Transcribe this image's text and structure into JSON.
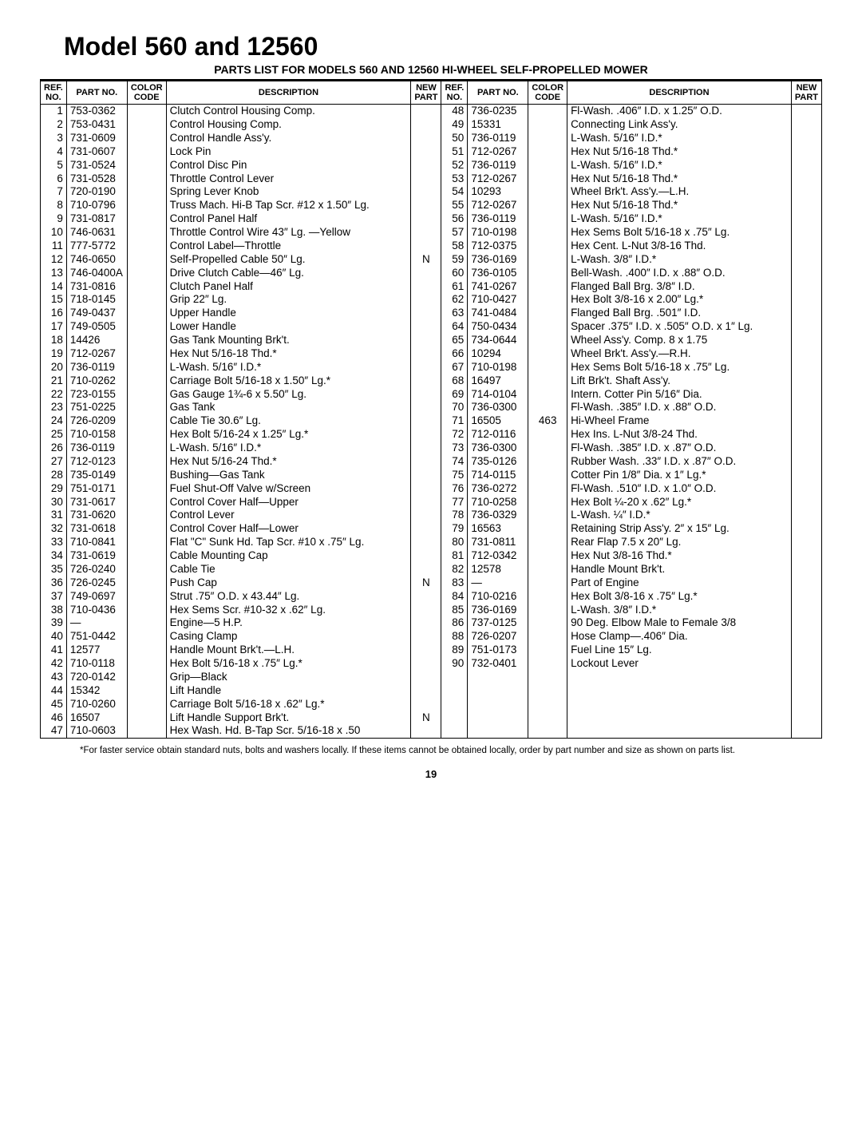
{
  "title": "Model 560 and 12560",
  "subtitle": "PARTS LIST FOR MODELS 560 AND 12560 HI-WHEEL SELF-PROPELLED MOWER",
  "headers": {
    "ref": "REF.\nNO.",
    "part": "PART\nNO.",
    "color": "COLOR\nCODE",
    "desc": "DESCRIPTION",
    "newp": "NEW\nPART"
  },
  "left": [
    {
      "ref": "1",
      "part": "753-0362",
      "color": "",
      "desc": "Clutch Control Housing Comp.",
      "newp": ""
    },
    {
      "ref": "2",
      "part": "753-0431",
      "color": "",
      "desc": "Control Housing Comp.",
      "newp": ""
    },
    {
      "ref": "3",
      "part": "731-0609",
      "color": "",
      "desc": "Control Handle Ass'y.",
      "newp": ""
    },
    {
      "ref": "4",
      "part": "731-0607",
      "color": "",
      "desc": "Lock Pin",
      "newp": ""
    },
    {
      "ref": "5",
      "part": "731-0524",
      "color": "",
      "desc": "Control Disc Pin",
      "newp": ""
    },
    {
      "ref": "6",
      "part": "731-0528",
      "color": "",
      "desc": "Throttle Control Lever",
      "newp": ""
    },
    {
      "ref": "7",
      "part": "720-0190",
      "color": "",
      "desc": "Spring Lever Knob",
      "newp": ""
    },
    {
      "ref": "8",
      "part": "710-0796",
      "color": "",
      "desc": "Truss Mach. Hi-B Tap Scr. #12 x 1.50″ Lg.",
      "newp": ""
    },
    {
      "ref": "9",
      "part": "731-0817",
      "color": "",
      "desc": "Control Panel Half",
      "newp": ""
    },
    {
      "ref": "10",
      "part": "746-0631",
      "color": "",
      "desc": "Throttle Control Wire 43″ Lg. —Yellow",
      "newp": ""
    },
    {
      "ref": "11",
      "part": "777-5772",
      "color": "",
      "desc": "Control Label—Throttle",
      "newp": ""
    },
    {
      "ref": "12",
      "part": "746-0650",
      "color": "",
      "desc": "Self-Propelled Cable 50″ Lg.",
      "newp": "N"
    },
    {
      "ref": "13",
      "part": "746-0400A",
      "color": "",
      "desc": "Drive Clutch Cable—46″ Lg.",
      "newp": ""
    },
    {
      "ref": "14",
      "part": "731-0816",
      "color": "",
      "desc": "Clutch Panel Half",
      "newp": ""
    },
    {
      "ref": "15",
      "part": "718-0145",
      "color": "",
      "desc": "Grip 22″ Lg.",
      "newp": ""
    },
    {
      "ref": "16",
      "part": "749-0437",
      "color": "",
      "desc": "Upper Handle",
      "newp": ""
    },
    {
      "ref": "17",
      "part": "749-0505",
      "color": "",
      "desc": "Lower Handle",
      "newp": ""
    },
    {
      "ref": "18",
      "part": "14426",
      "color": "",
      "desc": "Gas Tank Mounting Brk't.",
      "newp": ""
    },
    {
      "ref": "19",
      "part": "712-0267",
      "color": "",
      "desc": "Hex Nut 5/16-18 Thd.*",
      "newp": ""
    },
    {
      "ref": "20",
      "part": "736-0119",
      "color": "",
      "desc": "L-Wash. 5/16″ I.D.*",
      "newp": ""
    },
    {
      "ref": "21",
      "part": "710-0262",
      "color": "",
      "desc": "Carriage Bolt 5/16-18 x 1.50″ Lg.*",
      "newp": ""
    },
    {
      "ref": "22",
      "part": "723-0155",
      "color": "",
      "desc": "Gas Gauge 1¾-6 x 5.50″ Lg.",
      "newp": ""
    },
    {
      "ref": "23",
      "part": "751-0225",
      "color": "",
      "desc": "Gas Tank",
      "newp": ""
    },
    {
      "ref": "24",
      "part": "726-0209",
      "color": "",
      "desc": "Cable Tie 30.6″ Lg.",
      "newp": ""
    },
    {
      "ref": "25",
      "part": "710-0158",
      "color": "",
      "desc": "Hex Bolt 5/16-24 x 1.25″ Lg.*",
      "newp": ""
    },
    {
      "ref": "26",
      "part": "736-0119",
      "color": "",
      "desc": "L-Wash. 5/16″ I.D.*",
      "newp": ""
    },
    {
      "ref": "27",
      "part": "712-0123",
      "color": "",
      "desc": "Hex Nut 5/16-24 Thd.*",
      "newp": ""
    },
    {
      "ref": "28",
      "part": "735-0149",
      "color": "",
      "desc": "Bushing—Gas Tank",
      "newp": ""
    },
    {
      "ref": "29",
      "part": "751-0171",
      "color": "",
      "desc": "Fuel Shut-Off Valve w/Screen",
      "newp": ""
    },
    {
      "ref": "30",
      "part": "731-0617",
      "color": "",
      "desc": "Control Cover Half—Upper",
      "newp": ""
    },
    {
      "ref": "31",
      "part": "731-0620",
      "color": "",
      "desc": "Control Lever",
      "newp": ""
    },
    {
      "ref": "32",
      "part": "731-0618",
      "color": "",
      "desc": "Control Cover Half—Lower",
      "newp": ""
    },
    {
      "ref": "33",
      "part": "710-0841",
      "color": "",
      "desc": "Flat \"C\" Sunk Hd. Tap Scr. #10 x .75″ Lg.",
      "newp": ""
    },
    {
      "ref": "34",
      "part": "731-0619",
      "color": "",
      "desc": "Cable Mounting Cap",
      "newp": ""
    },
    {
      "ref": "35",
      "part": "726-0240",
      "color": "",
      "desc": "Cable Tie",
      "newp": ""
    },
    {
      "ref": "36",
      "part": "726-0245",
      "color": "",
      "desc": "Push Cap",
      "newp": "N"
    },
    {
      "ref": "37",
      "part": "749-0697",
      "color": "",
      "desc": "Strut .75″ O.D. x 43.44″ Lg.",
      "newp": ""
    },
    {
      "ref": "38",
      "part": "710-0436",
      "color": "",
      "desc": "Hex Sems Scr. #10-32 x .62″ Lg.",
      "newp": ""
    },
    {
      "ref": "39",
      "part": "—",
      "color": "",
      "desc": "Engine—5 H.P.",
      "newp": ""
    },
    {
      "ref": "40",
      "part": "751-0442",
      "color": "",
      "desc": "Casing Clamp",
      "newp": ""
    },
    {
      "ref": "41",
      "part": "12577",
      "color": "",
      "desc": "Handle Mount Brk't.—L.H.",
      "newp": ""
    },
    {
      "ref": "42",
      "part": "710-0118",
      "color": "",
      "desc": "Hex Bolt 5/16-18 x .75″ Lg.*",
      "newp": ""
    },
    {
      "ref": "43",
      "part": "720-0142",
      "color": "",
      "desc": "Grip—Black",
      "newp": ""
    },
    {
      "ref": "44",
      "part": "15342",
      "color": "",
      "desc": "Lift Handle",
      "newp": ""
    },
    {
      "ref": "45",
      "part": "710-0260",
      "color": "",
      "desc": "Carriage Bolt 5/16-18 x .62″ Lg.*",
      "newp": ""
    },
    {
      "ref": "46",
      "part": "16507",
      "color": "",
      "desc": "Lift Handle Support Brk't.",
      "newp": "N"
    },
    {
      "ref": "47",
      "part": "710-0603",
      "color": "",
      "desc": "Hex Wash. Hd. B-Tap Scr. 5/16-18 x .50",
      "newp": ""
    }
  ],
  "right": [
    {
      "ref": "48",
      "part": "736-0235",
      "color": "",
      "desc": "Fl-Wash. .406″ I.D. x 1.25″ O.D.",
      "newp": ""
    },
    {
      "ref": "49",
      "part": "15331",
      "color": "",
      "desc": "Connecting Link Ass'y.",
      "newp": ""
    },
    {
      "ref": "50",
      "part": "736-0119",
      "color": "",
      "desc": "L-Wash. 5/16″ I.D.*",
      "newp": ""
    },
    {
      "ref": "51",
      "part": "712-0267",
      "color": "",
      "desc": "Hex Nut 5/16-18 Thd.*",
      "newp": ""
    },
    {
      "ref": "52",
      "part": "736-0119",
      "color": "",
      "desc": "L-Wash. 5/16″ I.D.*",
      "newp": ""
    },
    {
      "ref": "53",
      "part": "712-0267",
      "color": "",
      "desc": "Hex Nut 5/16-18 Thd.*",
      "newp": ""
    },
    {
      "ref": "54",
      "part": "10293",
      "color": "",
      "desc": "Wheel Brk't. Ass'y.—L.H.",
      "newp": ""
    },
    {
      "ref": "55",
      "part": "712-0267",
      "color": "",
      "desc": "Hex Nut 5/16-18 Thd.*",
      "newp": ""
    },
    {
      "ref": "56",
      "part": "736-0119",
      "color": "",
      "desc": "L-Wash. 5/16″ I.D.*",
      "newp": ""
    },
    {
      "ref": "57",
      "part": "710-0198",
      "color": "",
      "desc": "Hex Sems Bolt 5/16-18 x .75″ Lg.",
      "newp": ""
    },
    {
      "ref": "58",
      "part": "712-0375",
      "color": "",
      "desc": "Hex Cent. L-Nut 3/8-16 Thd.",
      "newp": ""
    },
    {
      "ref": "59",
      "part": "736-0169",
      "color": "",
      "desc": "L-Wash. 3/8″ I.D.*",
      "newp": ""
    },
    {
      "ref": "60",
      "part": "736-0105",
      "color": "",
      "desc": "Bell-Wash. .400″ I.D. x .88″ O.D.",
      "newp": ""
    },
    {
      "ref": "61",
      "part": "741-0267",
      "color": "",
      "desc": "Flanged Ball Brg. 3/8″ I.D.",
      "newp": ""
    },
    {
      "ref": "62",
      "part": "710-0427",
      "color": "",
      "desc": "Hex Bolt 3/8-16 x 2.00″ Lg.*",
      "newp": ""
    },
    {
      "ref": "63",
      "part": "741-0484",
      "color": "",
      "desc": "Flanged Ball Brg. .501″ I.D.",
      "newp": ""
    },
    {
      "ref": "64",
      "part": "750-0434",
      "color": "",
      "desc": "Spacer .375″ I.D. x .505″ O.D. x 1″ Lg.",
      "newp": ""
    },
    {
      "ref": "65",
      "part": "734-0644",
      "color": "",
      "desc": "Wheel Ass'y. Comp. 8 x 1.75",
      "newp": ""
    },
    {
      "ref": "66",
      "part": "10294",
      "color": "",
      "desc": "Wheel Brk't. Ass'y.—R.H.",
      "newp": ""
    },
    {
      "ref": "67",
      "part": "710-0198",
      "color": "",
      "desc": "Hex Sems Bolt 5/16-18 x .75″ Lg.",
      "newp": ""
    },
    {
      "ref": "68",
      "part": "16497",
      "color": "",
      "desc": "Lift Brk't. Shaft Ass'y.",
      "newp": ""
    },
    {
      "ref": "69",
      "part": "714-0104",
      "color": "",
      "desc": "Intern. Cotter Pin 5/16″ Dia.",
      "newp": ""
    },
    {
      "ref": "70",
      "part": "736-0300",
      "color": "",
      "desc": "Fl-Wash. .385″ I.D. x .88″ O.D.",
      "newp": ""
    },
    {
      "ref": "71",
      "part": "16505",
      "color": "463",
      "desc": "Hi-Wheel Frame",
      "newp": ""
    },
    {
      "ref": "72",
      "part": "712-0116",
      "color": "",
      "desc": "Hex Ins. L-Nut 3/8-24 Thd.",
      "newp": ""
    },
    {
      "ref": "73",
      "part": "736-0300",
      "color": "",
      "desc": "Fl-Wash. .385″ I.D. x .87″ O.D.",
      "newp": ""
    },
    {
      "ref": "74",
      "part": "735-0126",
      "color": "",
      "desc": "Rubber Wash. .33″ I.D. x .87″ O.D.",
      "newp": ""
    },
    {
      "ref": "75",
      "part": "714-0115",
      "color": "",
      "desc": "Cotter Pin 1/8″ Dia. x 1″ Lg.*",
      "newp": ""
    },
    {
      "ref": "76",
      "part": "736-0272",
      "color": "",
      "desc": "Fl-Wash. .510″ I.D. x 1.0″ O.D.",
      "newp": ""
    },
    {
      "ref": "77",
      "part": "710-0258",
      "color": "",
      "desc": "Hex Bolt ¼-20 x .62″ Lg.*",
      "newp": ""
    },
    {
      "ref": "78",
      "part": "736-0329",
      "color": "",
      "desc": "L-Wash. ¼″ I.D.*",
      "newp": ""
    },
    {
      "ref": "79",
      "part": "16563",
      "color": "",
      "desc": "Retaining Strip Ass'y. 2″ x 15″ Lg.",
      "newp": ""
    },
    {
      "ref": "80",
      "part": "731-0811",
      "color": "",
      "desc": "Rear Flap 7.5 x 20″ Lg.",
      "newp": ""
    },
    {
      "ref": "81",
      "part": "712-0342",
      "color": "",
      "desc": "Hex Nut 3/8-16 Thd.*",
      "newp": ""
    },
    {
      "ref": "82",
      "part": "12578",
      "color": "",
      "desc": "Handle Mount Brk't.",
      "newp": ""
    },
    {
      "ref": "83",
      "part": "—",
      "color": "",
      "desc": "Part of Engine",
      "newp": ""
    },
    {
      "ref": "84",
      "part": "710-0216",
      "color": "",
      "desc": "Hex Bolt 3/8-16 x .75″ Lg.*",
      "newp": ""
    },
    {
      "ref": "85",
      "part": "736-0169",
      "color": "",
      "desc": "L-Wash. 3/8″ I.D.*",
      "newp": ""
    },
    {
      "ref": "86",
      "part": "737-0125",
      "color": "",
      "desc": "90 Deg. Elbow Male to Female 3/8",
      "newp": ""
    },
    {
      "ref": "88",
      "part": "726-0207",
      "color": "",
      "desc": "Hose Clamp—.406″ Dia.",
      "newp": ""
    },
    {
      "ref": "89",
      "part": "751-0173",
      "color": "",
      "desc": "Fuel Line 15″ Lg.",
      "newp": ""
    },
    {
      "ref": "90",
      "part": "732-0401",
      "color": "",
      "desc": "Lockout Lever",
      "newp": ""
    }
  ],
  "footnote": "*For faster service obtain standard nuts, bolts and washers locally.\nIf these items cannot be obtained locally, order by part number and\nsize as shown on parts list.",
  "pagenum": "19"
}
